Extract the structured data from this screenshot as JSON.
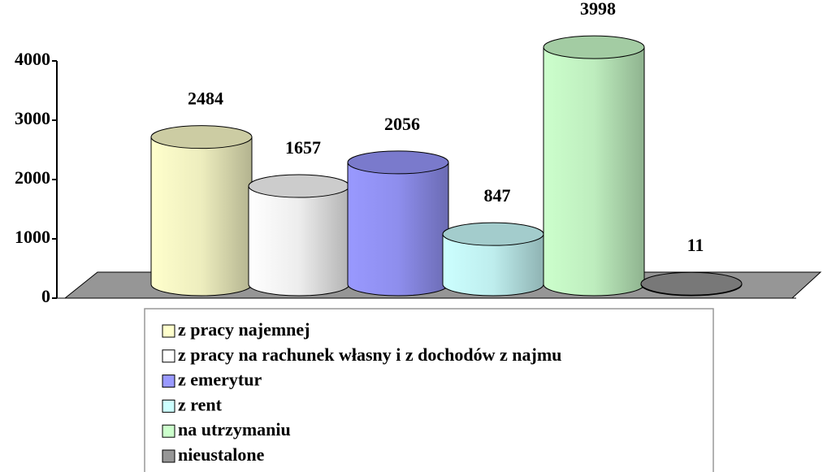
{
  "chart_data": {
    "type": "bar3d",
    "categories": [
      "z pracy najemnej",
      "z pracy na rachunek własny i z dochodów z najmu",
      "z emerytur",
      "z rent",
      "na utrzymaniu",
      "nieustalone"
    ],
    "values": [
      2484,
      1657,
      2056,
      847,
      3998,
      11
    ],
    "colors": [
      "#ffffcc",
      "#ffffff",
      "#9999ff",
      "#ccffff",
      "#ccffcc",
      "#969696"
    ],
    "ylim": [
      0,
      4000
    ],
    "yticks": [
      0,
      1000,
      2000,
      3000,
      4000
    ]
  }
}
